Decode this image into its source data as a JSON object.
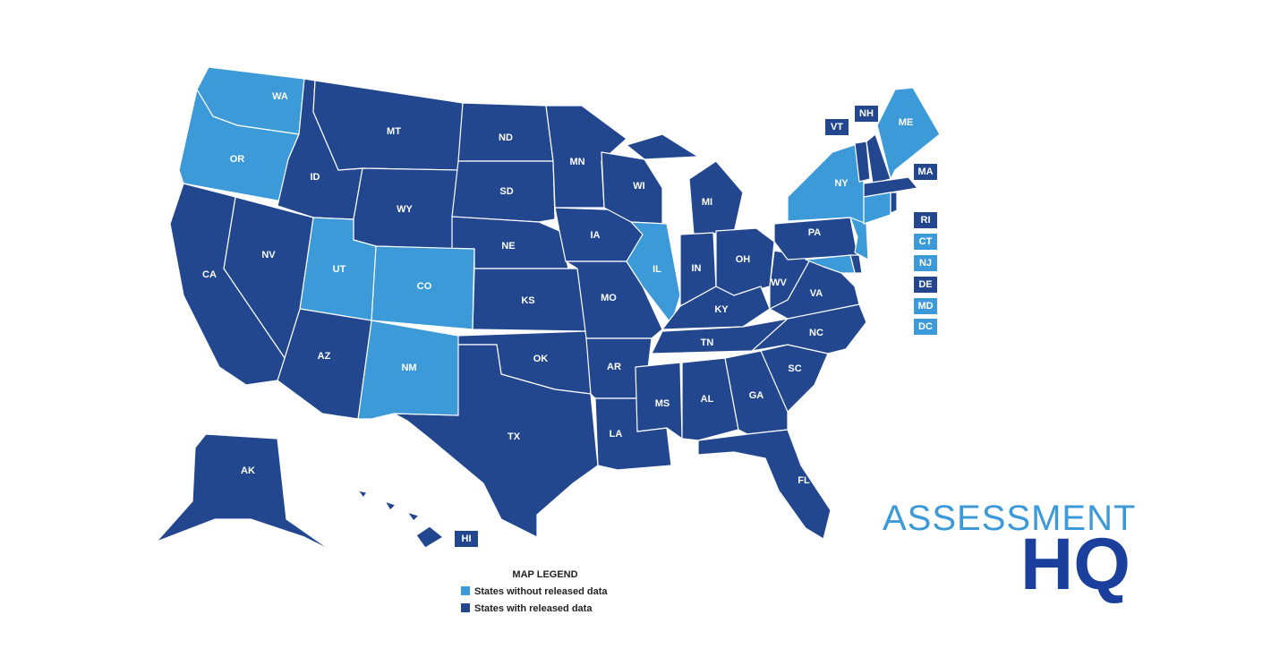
{
  "legend": {
    "title": "MAP LEGEND",
    "items": [
      {
        "label": "States without released data",
        "color": "#3c9ad9"
      },
      {
        "label": "States with released data",
        "color": "#22478f"
      }
    ]
  },
  "states": [
    {
      "abbr": "WA",
      "group": 0
    },
    {
      "abbr": "OR",
      "group": 0
    },
    {
      "abbr": "ID",
      "group": 1
    },
    {
      "abbr": "MT",
      "group": 1
    },
    {
      "abbr": "WY",
      "group": 1
    },
    {
      "abbr": "ND",
      "group": 1
    },
    {
      "abbr": "SD",
      "group": 1
    },
    {
      "abbr": "NE",
      "group": 1
    },
    {
      "abbr": "KS",
      "group": 1
    },
    {
      "abbr": "OK",
      "group": 1
    },
    {
      "abbr": "TX",
      "group": 1
    },
    {
      "abbr": "NM",
      "group": 0
    },
    {
      "abbr": "CO",
      "group": 0
    },
    {
      "abbr": "UT",
      "group": 0
    },
    {
      "abbr": "AZ",
      "group": 1
    },
    {
      "abbr": "NV",
      "group": 1
    },
    {
      "abbr": "CA",
      "group": 1
    },
    {
      "abbr": "MN",
      "group": 1
    },
    {
      "abbr": "IA",
      "group": 1
    },
    {
      "abbr": "MO",
      "group": 1
    },
    {
      "abbr": "AR",
      "group": 1
    },
    {
      "abbr": "LA",
      "group": 1
    },
    {
      "abbr": "WI",
      "group": 1
    },
    {
      "abbr": "IL",
      "group": 0
    },
    {
      "abbr": "MI",
      "group": 1
    },
    {
      "abbr": "IN",
      "group": 1
    },
    {
      "abbr": "OH",
      "group": 1
    },
    {
      "abbr": "KY",
      "group": 1
    },
    {
      "abbr": "TN",
      "group": 1
    },
    {
      "abbr": "MS",
      "group": 1
    },
    {
      "abbr": "AL",
      "group": 1
    },
    {
      "abbr": "GA",
      "group": 1
    },
    {
      "abbr": "FL",
      "group": 1
    },
    {
      "abbr": "SC",
      "group": 1
    },
    {
      "abbr": "NC",
      "group": 1
    },
    {
      "abbr": "VA",
      "group": 1
    },
    {
      "abbr": "WV",
      "group": 1
    },
    {
      "abbr": "PA",
      "group": 1
    },
    {
      "abbr": "NY",
      "group": 0
    },
    {
      "abbr": "NJ",
      "group": 0
    },
    {
      "abbr": "DE",
      "group": 1
    },
    {
      "abbr": "MD",
      "group": 0
    },
    {
      "abbr": "VT",
      "group": 1
    },
    {
      "abbr": "NH",
      "group": 1
    },
    {
      "abbr": "ME",
      "group": 0
    },
    {
      "abbr": "MA",
      "group": 1
    },
    {
      "abbr": "CT",
      "group": 0
    },
    {
      "abbr": "RI",
      "group": 1
    },
    {
      "abbr": "AK",
      "group": 1
    },
    {
      "abbr": "HI",
      "group": 1
    },
    {
      "abbr": "DC",
      "group": 0
    }
  ],
  "logo": {
    "line1": "ASSESSMENT",
    "line2": "HQ"
  }
}
